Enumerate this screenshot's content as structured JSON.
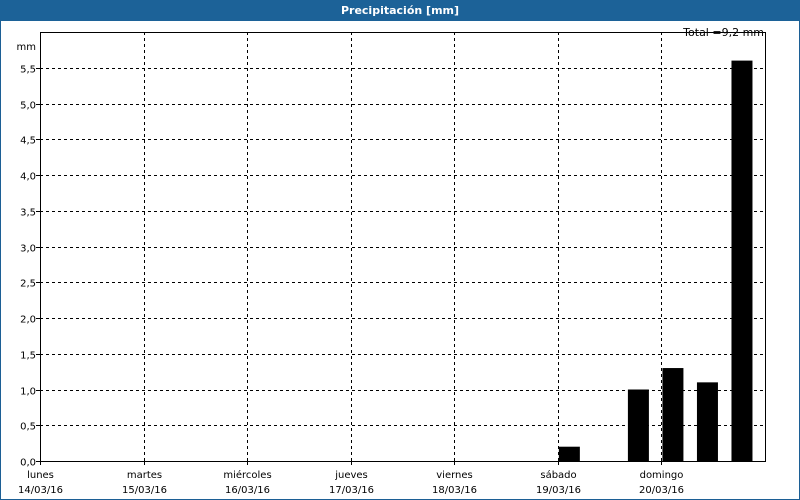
{
  "window": {
    "title": "Precipitación [mm]"
  },
  "total_label": "Total =9,2 mm",
  "chart_data": {
    "type": "bar",
    "title": "Precipitación [mm]",
    "ylabel": "mm",
    "ylim": [
      0,
      6
    ],
    "yticks": [
      "0,0",
      "0,5",
      "1,0",
      "1,5",
      "2,0",
      "2,5",
      "3,0",
      "3,5",
      "4,0",
      "4,5",
      "5,0",
      "5,5"
    ],
    "grid": true,
    "day_labels": [
      {
        "day": "lunes",
        "date": "14/03/16"
      },
      {
        "day": "martes",
        "date": "15/03/16"
      },
      {
        "day": "miércoles",
        "date": "16/03/16"
      },
      {
        "day": "jueves",
        "date": "17/03/16"
      },
      {
        "day": "viernes",
        "date": "18/03/16"
      },
      {
        "day": "sábado",
        "date": "19/03/16"
      },
      {
        "day": "domingo",
        "date": "20/03/16"
      }
    ],
    "periods_per_day": 3,
    "values": [
      0,
      0,
      0,
      0,
      0,
      0,
      0,
      0,
      0,
      0,
      0,
      0,
      0,
      0,
      0,
      0.2,
      0,
      1.0,
      1.3,
      1.1,
      5.6
    ],
    "bar_color": "#000000",
    "total": 9.2
  }
}
